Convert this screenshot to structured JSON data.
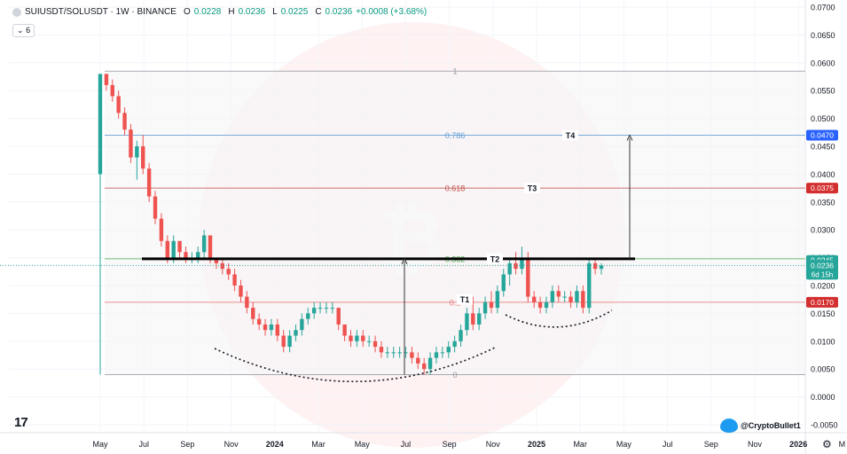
{
  "header": {
    "symbol": "SUIUSDT/SOLUSDT · 1W · BINANCE",
    "o_label": "O",
    "o_val": "0.0228",
    "h_label": "H",
    "h_val": "0.0236",
    "l_label": "L",
    "l_val": "0.0225",
    "c_label": "C",
    "c_val": "0.0236",
    "change": "+0.0008 (+3.68%)"
  },
  "indicator_toggle": "6",
  "watermark_handle": "@CryptoBullet1",
  "colors": {
    "up": "#26a69a",
    "down": "#ef5350",
    "fib_786": "#5b9bd5",
    "fib_618": "#c0504d",
    "price_tag_blue": "#2962ff",
    "price_tag_red": "#d32f2f",
    "price_tag_green": "#26a69a",
    "price_tag_teal": "#26a69a"
  },
  "chart_data": {
    "type": "candlestick",
    "ylim": [
      -0.005,
      0.07
    ],
    "yticks": [
      "0.0700",
      "0.0650",
      "0.0600",
      "0.0550",
      "0.0500",
      "0.0450",
      "0.0400",
      "0.0350",
      "0.0300",
      "0.0250",
      "0.0200",
      "0.0150",
      "0.0100",
      "0.0050",
      "0.0000",
      "-0.0050"
    ],
    "xticks": [
      "May",
      "Jul",
      "Sep",
      "Nov",
      "2024",
      "Mar",
      "May",
      "Jul",
      "Sep",
      "Nov",
      "2025",
      "Mar",
      "May",
      "Jul",
      "Sep",
      "Nov",
      "2026",
      "M"
    ],
    "fib_levels": [
      {
        "label": "1",
        "value": 0.0585
      },
      {
        "label": "0.786",
        "value": 0.047
      },
      {
        "label": "0.618",
        "value": 0.0375
      },
      {
        "label": "0.382",
        "value": 0.0248
      },
      {
        "label": "0.2",
        "value": 0.017
      },
      {
        "label": "0",
        "value": 0.004
      }
    ],
    "targets": [
      {
        "label": "T1",
        "value": 0.0175
      },
      {
        "label": "T2",
        "value": 0.0248
      },
      {
        "label": "T3",
        "value": 0.0375
      },
      {
        "label": "T4",
        "value": 0.047
      }
    ],
    "price_tags": [
      {
        "value": "0.0470",
        "color": "blue"
      },
      {
        "value": "0.0375",
        "color": "red"
      },
      {
        "value": "0.0245",
        "color": "green"
      },
      {
        "value": "0.0236",
        "sub": "6d 15h",
        "color": "teal"
      },
      {
        "value": "0.0170",
        "color": "red"
      }
    ],
    "neckline": 0.0248,
    "candles": [
      [
        0.04,
        0.058,
        0.004,
        0.058
      ],
      [
        0.058,
        0.058,
        0.055,
        0.056
      ],
      [
        0.056,
        0.057,
        0.053,
        0.054
      ],
      [
        0.054,
        0.055,
        0.05,
        0.051
      ],
      [
        0.051,
        0.052,
        0.047,
        0.048
      ],
      [
        0.048,
        0.049,
        0.042,
        0.043
      ],
      [
        0.043,
        0.046,
        0.039,
        0.045
      ],
      [
        0.045,
        0.047,
        0.04,
        0.041
      ],
      [
        0.041,
        0.042,
        0.035,
        0.036
      ],
      [
        0.036,
        0.037,
        0.031,
        0.032
      ],
      [
        0.032,
        0.033,
        0.027,
        0.028
      ],
      [
        0.028,
        0.029,
        0.024,
        0.025
      ],
      [
        0.025,
        0.029,
        0.024,
        0.028
      ],
      [
        0.028,
        0.028,
        0.025,
        0.026
      ],
      [
        0.026,
        0.027,
        0.024,
        0.025
      ],
      [
        0.025,
        0.026,
        0.024,
        0.025
      ],
      [
        0.025,
        0.027,
        0.024,
        0.026
      ],
      [
        0.026,
        0.03,
        0.025,
        0.029
      ],
      [
        0.029,
        0.029,
        0.024,
        0.025
      ],
      [
        0.025,
        0.025,
        0.023,
        0.024
      ],
      [
        0.024,
        0.025,
        0.022,
        0.023
      ],
      [
        0.023,
        0.024,
        0.021,
        0.022
      ],
      [
        0.022,
        0.023,
        0.019,
        0.02
      ],
      [
        0.02,
        0.021,
        0.017,
        0.018
      ],
      [
        0.018,
        0.019,
        0.015,
        0.016
      ],
      [
        0.016,
        0.017,
        0.013,
        0.014
      ],
      [
        0.014,
        0.015,
        0.012,
        0.013
      ],
      [
        0.013,
        0.014,
        0.011,
        0.012
      ],
      [
        0.012,
        0.014,
        0.011,
        0.013
      ],
      [
        0.013,
        0.014,
        0.01,
        0.011
      ],
      [
        0.011,
        0.012,
        0.008,
        0.009
      ],
      [
        0.009,
        0.012,
        0.008,
        0.011
      ],
      [
        0.011,
        0.013,
        0.01,
        0.012
      ],
      [
        0.012,
        0.015,
        0.011,
        0.014
      ],
      [
        0.014,
        0.016,
        0.013,
        0.015
      ],
      [
        0.015,
        0.017,
        0.014,
        0.016
      ],
      [
        0.016,
        0.017,
        0.015,
        0.016
      ],
      [
        0.016,
        0.017,
        0.015,
        0.016
      ],
      [
        0.016,
        0.017,
        0.015,
        0.016
      ],
      [
        0.016,
        0.016,
        0.012,
        0.013
      ],
      [
        0.013,
        0.013,
        0.01,
        0.011
      ],
      [
        0.011,
        0.012,
        0.009,
        0.01
      ],
      [
        0.01,
        0.012,
        0.009,
        0.011
      ],
      [
        0.011,
        0.012,
        0.009,
        0.01
      ],
      [
        0.01,
        0.011,
        0.009,
        0.01
      ],
      [
        0.01,
        0.011,
        0.008,
        0.009
      ],
      [
        0.009,
        0.01,
        0.007,
        0.008
      ],
      [
        0.008,
        0.009,
        0.007,
        0.008
      ],
      [
        0.008,
        0.009,
        0.007,
        0.008
      ],
      [
        0.008,
        0.009,
        0.007,
        0.008
      ],
      [
        0.008,
        0.009,
        0.007,
        0.008
      ],
      [
        0.008,
        0.009,
        0.006,
        0.007
      ],
      [
        0.007,
        0.008,
        0.005,
        0.006
      ],
      [
        0.006,
        0.007,
        0.004,
        0.005
      ],
      [
        0.005,
        0.008,
        0.004,
        0.007
      ],
      [
        0.007,
        0.009,
        0.006,
        0.008
      ],
      [
        0.008,
        0.009,
        0.007,
        0.008
      ],
      [
        0.008,
        0.01,
        0.007,
        0.009
      ],
      [
        0.009,
        0.011,
        0.008,
        0.01
      ],
      [
        0.01,
        0.013,
        0.009,
        0.012
      ],
      [
        0.012,
        0.016,
        0.011,
        0.015
      ],
      [
        0.015,
        0.018,
        0.012,
        0.013
      ],
      [
        0.013,
        0.016,
        0.012,
        0.015
      ],
      [
        0.015,
        0.018,
        0.014,
        0.017
      ],
      [
        0.017,
        0.019,
        0.015,
        0.016
      ],
      [
        0.016,
        0.02,
        0.015,
        0.019
      ],
      [
        0.019,
        0.023,
        0.018,
        0.022
      ],
      [
        0.022,
        0.025,
        0.02,
        0.024
      ],
      [
        0.024,
        0.026,
        0.022,
        0.023
      ],
      [
        0.023,
        0.027,
        0.022,
        0.025
      ],
      [
        0.025,
        0.026,
        0.017,
        0.018
      ],
      [
        0.018,
        0.019,
        0.016,
        0.017
      ],
      [
        0.017,
        0.018,
        0.015,
        0.016
      ],
      [
        0.016,
        0.018,
        0.015,
        0.017
      ],
      [
        0.017,
        0.02,
        0.016,
        0.019
      ],
      [
        0.019,
        0.02,
        0.017,
        0.018
      ],
      [
        0.018,
        0.019,
        0.017,
        0.018
      ],
      [
        0.018,
        0.019,
        0.016,
        0.017
      ],
      [
        0.017,
        0.02,
        0.016,
        0.019
      ],
      [
        0.019,
        0.02,
        0.015,
        0.016
      ],
      [
        0.016,
        0.025,
        0.015,
        0.024
      ],
      [
        0.024,
        0.025,
        0.022,
        0.023
      ],
      [
        0.023,
        0.024,
        0.022,
        0.0236
      ]
    ]
  }
}
